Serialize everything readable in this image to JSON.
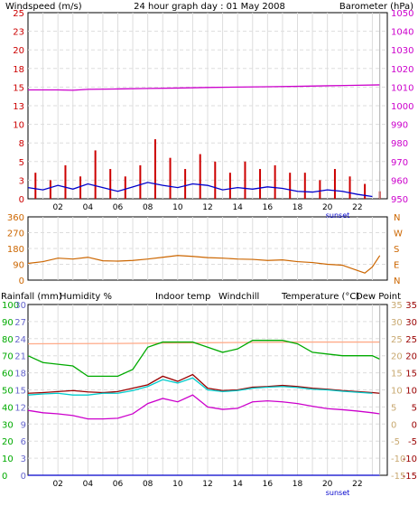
{
  "title": "24 hour graph day : 01 May 2008",
  "colors": {
    "wind_axis": "#cc0000",
    "baro_axis": "#cc00cc",
    "dir_axis": "#cc6600",
    "rain": "#6666cc",
    "humidity": "#00aa00",
    "indoor": "#ffaa88",
    "windchill": "#00cccc",
    "temperature": "#990000",
    "dew": "#cc00cc",
    "grid": "#dddddd",
    "panel_border": "#000000",
    "blue_line": "#0000cc"
  },
  "labels": {
    "windspeed": "Windspeed (m/s)",
    "barometer": "Barometer (hPa)",
    "rainfall": "Rainfall (mm)",
    "humidity": "Humidity %",
    "indoor": "Indoor temp",
    "windchill": "Windchill",
    "temperature": "Temperature (°C)",
    "dewpoint": "Dew Point",
    "sunset": "sunset"
  },
  "chart_data": [
    {
      "type": "line",
      "title": "24 hour graph day : 01 May 2008",
      "xlabel": "",
      "x_ticks": [
        "02",
        "04",
        "06",
        "08",
        "10",
        "12",
        "14",
        "16",
        "18",
        "20",
        "22"
      ],
      "left_axis": {
        "label": "Windspeed (m/s)",
        "range": [
          0,
          25
        ],
        "ticks": [
          "0",
          "3",
          "5",
          "8",
          "10",
          "13",
          "15",
          "18",
          "20",
          "23",
          "25"
        ]
      },
      "right_axis": {
        "label": "Barometer (hPa)",
        "range": [
          950,
          1050
        ],
        "ticks": [
          "950",
          "960",
          "970",
          "980",
          "990",
          "1000",
          "1010",
          "1020",
          "1030",
          "1040",
          "1050"
        ]
      },
      "series": [
        {
          "name": "Barometer (hPa)",
          "x_hours": [
            0,
            2,
            3,
            4,
            6,
            8,
            10,
            12,
            14,
            16,
            18,
            20,
            22,
            23.5
          ],
          "values": [
            1008.5,
            1008.5,
            1008.3,
            1008.8,
            1009.0,
            1009.3,
            1009.5,
            1009.8,
            1010.0,
            1010.2,
            1010.4,
            1010.7,
            1011.0,
            1011.2
          ]
        },
        {
          "name": "Windspeed (m/s)",
          "x_hours": [
            0,
            1,
            2,
            3,
            4,
            5,
            6,
            7,
            8,
            9,
            10,
            11,
            12,
            13,
            14,
            15,
            16,
            17,
            18,
            19,
            20,
            21,
            22,
            23
          ],
          "values": [
            1.5,
            1.2,
            1.8,
            1.3,
            2.0,
            1.5,
            1.0,
            1.6,
            2.2,
            1.8,
            1.5,
            2.0,
            1.8,
            1.2,
            1.5,
            1.3,
            1.6,
            1.4,
            1.0,
            0.9,
            1.2,
            1.0,
            0.6,
            0.3
          ]
        },
        {
          "name": "Gust (m/s)",
          "x_hours": [
            0,
            1,
            2,
            3,
            4,
            5,
            6,
            7,
            8,
            9,
            10,
            11,
            12,
            13,
            14,
            15,
            16,
            17,
            18,
            19,
            20,
            21,
            22,
            23
          ],
          "values": [
            3.5,
            2.5,
            4.5,
            3.0,
            6.5,
            4.0,
            3.0,
            4.5,
            8.0,
            5.5,
            4.0,
            6.0,
            5.0,
            3.5,
            5.0,
            4.0,
            4.5,
            3.5,
            3.5,
            2.5,
            4.0,
            3.0,
            2.0,
            1.0
          ]
        }
      ],
      "annotations": [
        "sunset"
      ]
    },
    {
      "type": "line",
      "left_axis": {
        "label": "",
        "range": [
          0,
          360
        ],
        "ticks": [
          "0",
          "90",
          "180",
          "270",
          "360"
        ]
      },
      "right_axis": {
        "label": "",
        "ticks": [
          "N",
          "E",
          "S",
          "W",
          "N"
        ]
      },
      "series": [
        {
          "name": "Wind direction",
          "x_hours": [
            0,
            1,
            2,
            3,
            4,
            5,
            6,
            7,
            8,
            9,
            10,
            11,
            12,
            13,
            14,
            15,
            16,
            17,
            18,
            19,
            20,
            21,
            22,
            22.5,
            23,
            23.5
          ],
          "values": [
            95,
            105,
            125,
            120,
            130,
            110,
            108,
            112,
            120,
            130,
            140,
            135,
            128,
            125,
            120,
            118,
            112,
            115,
            105,
            100,
            90,
            85,
            55,
            40,
            75,
            140
          ]
        }
      ],
      "annotations": [
        "sunset"
      ]
    },
    {
      "type": "line",
      "x_ticks": [
        "02",
        "04",
        "06",
        "08",
        "10",
        "12",
        "14",
        "16",
        "18",
        "20",
        "22"
      ],
      "axes": {
        "rainfall": {
          "label": "Rainfall (mm)",
          "range": [
            0,
            30
          ],
          "ticks": [
            "0",
            "3",
            "6",
            "9",
            "12",
            "15",
            "18",
            "21",
            "24",
            "27",
            "30"
          ]
        },
        "humidity": {
          "label": "Humidity %",
          "range": [
            0,
            100
          ],
          "ticks": [
            "0",
            "10",
            "20",
            "30",
            "40",
            "50",
            "60",
            "70",
            "80",
            "90",
            "100"
          ]
        },
        "temperature": {
          "label": "Temperature (°C)",
          "range": [
            -15,
            35
          ],
          "ticks": [
            "-15",
            "-10",
            "-5",
            "0",
            "5",
            "10",
            "15",
            "20",
            "25",
            "30",
            "35"
          ]
        }
      },
      "series": [
        {
          "name": "Indoor temp",
          "x_hours": [
            0,
            6,
            12,
            18,
            23.5
          ],
          "values": [
            23.5,
            23.6,
            23.8,
            24.0,
            24.0
          ]
        },
        {
          "name": "Humidity %",
          "x_hours": [
            0,
            1,
            2,
            3,
            4,
            5,
            6,
            7,
            8,
            9,
            10,
            11,
            12,
            13,
            14,
            15,
            16,
            17,
            18,
            19,
            20,
            21,
            22,
            23,
            23.5
          ],
          "values": [
            70,
            66,
            65,
            64,
            58,
            58,
            58,
            62,
            75,
            78,
            78,
            78,
            75,
            72,
            74,
            79,
            79,
            79,
            77,
            72,
            71,
            70,
            70,
            70,
            68
          ]
        },
        {
          "name": "Temperature (°C)",
          "x_hours": [
            0,
            1,
            2,
            3,
            4,
            5,
            6,
            7,
            8,
            9,
            10,
            11,
            12,
            13,
            14,
            15,
            16,
            17,
            18,
            19,
            20,
            21,
            22,
            23,
            23.5
          ],
          "values": [
            9.0,
            9.2,
            9.5,
            9.8,
            9.4,
            9.2,
            9.5,
            10.5,
            11.5,
            14.0,
            12.5,
            14.5,
            10.5,
            9.8,
            10.0,
            10.8,
            11.0,
            11.3,
            11.0,
            10.5,
            10.2,
            9.8,
            9.5,
            9.2,
            9.0
          ]
        },
        {
          "name": "Windchill",
          "x_hours": [
            0,
            1,
            2,
            3,
            4,
            5,
            6,
            7,
            8,
            9,
            10,
            11,
            12,
            13,
            14,
            15,
            16,
            17,
            18,
            19,
            20,
            21,
            22,
            23
          ],
          "values": [
            8.5,
            8.8,
            9.0,
            8.5,
            8.5,
            9.0,
            9.0,
            9.8,
            11.0,
            13.0,
            12.0,
            13.5,
            10.0,
            9.5,
            9.8,
            10.5,
            10.8,
            11.0,
            10.7,
            10.2,
            10.0,
            9.6,
            9.3,
            9.0
          ]
        },
        {
          "name": "Dew Point",
          "x_hours": [
            0,
            1,
            2,
            3,
            4,
            5,
            6,
            7,
            8,
            9,
            10,
            11,
            12,
            13,
            14,
            15,
            16,
            17,
            18,
            19,
            20,
            21,
            22,
            23,
            23.5
          ],
          "values": [
            4.0,
            3.3,
            3.0,
            2.5,
            1.5,
            1.5,
            1.7,
            3.0,
            6.0,
            7.5,
            6.5,
            8.5,
            5.0,
            4.3,
            4.6,
            6.5,
            6.8,
            6.5,
            6.0,
            5.2,
            4.5,
            4.2,
            3.8,
            3.3,
            3.0
          ]
        },
        {
          "name": "Rainfall (mm)",
          "x_hours": [
            0,
            23.5
          ],
          "values": [
            0,
            0
          ]
        }
      ],
      "annotations": [
        "sunset"
      ]
    }
  ]
}
